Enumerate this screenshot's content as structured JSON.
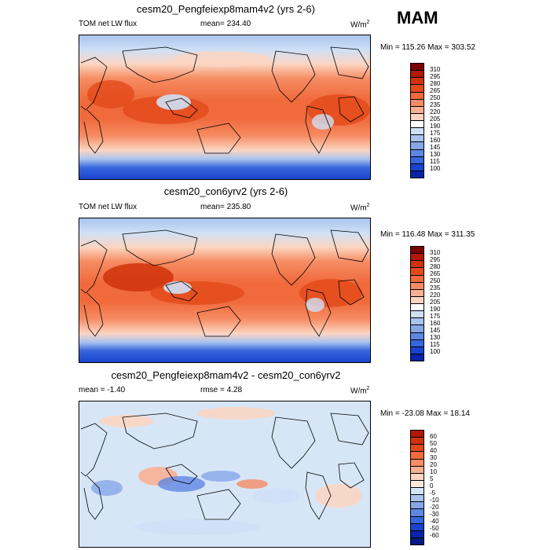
{
  "season": "MAM",
  "panels": [
    {
      "title": "cesm20_Pengfeiexp8mam4v2 (yrs 2-6)",
      "left_label": "TOM net LW flux",
      "center_label": "mean= 234.40",
      "units": "W/m",
      "units_sup": "2",
      "minmax": "Min = 115.26 Max = 303.52",
      "colorbar_ticks": [
        "310",
        "295",
        "280",
        "265",
        "250",
        "235",
        "220",
        "205",
        "190",
        "175",
        "160",
        "145",
        "130",
        "115",
        "100"
      ]
    },
    {
      "title": "cesm20_con6yrv2 (yrs 2-6)",
      "left_label": "TOM net LW flux",
      "center_label": "mean= 235.80",
      "units": "W/m",
      "units_sup": "2",
      "minmax": "Min = 116.48 Max = 311.35",
      "colorbar_ticks": [
        "310",
        "295",
        "280",
        "265",
        "250",
        "235",
        "220",
        "205",
        "190",
        "175",
        "160",
        "145",
        "130",
        "115",
        "100"
      ]
    },
    {
      "title": "cesm20_Pengfeiexp8mam4v2 - cesm20_con6yrv2",
      "left_label": "mean =  -1.40",
      "center_label": "rmse =   4.28",
      "units": "W/m",
      "units_sup": "2",
      "minmax": "Min = -23.08 Max =  18.14",
      "colorbar_ticks": [
        "60",
        "50",
        "40",
        "30",
        "20",
        "10",
        "5",
        "0",
        "-5",
        "-10",
        "-20",
        "-30",
        "-40",
        "-50",
        "-60"
      ]
    }
  ],
  "colors": {
    "colorbar": [
      "#7a0403",
      "#b01906",
      "#d0330a",
      "#e34a1a",
      "#f06a3c",
      "#f68c63",
      "#f9b092",
      "#fbd5c2",
      "#ffffff",
      "#cfe0f6",
      "#a9c4ee",
      "#86a6e8",
      "#5f86e4",
      "#3866dc",
      "#1a44cf",
      "#0a24a8"
    ]
  }
}
